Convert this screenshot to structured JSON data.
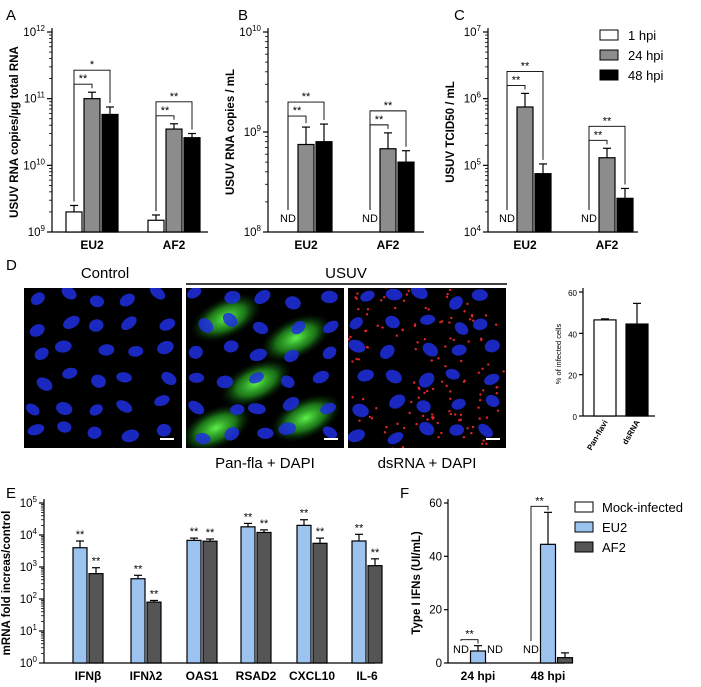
{
  "panels": {
    "A": "A",
    "B": "B",
    "C": "C",
    "D": "D",
    "E": "E",
    "F": "F"
  },
  "legend_abc": {
    "items": [
      "1 hpi",
      "24 hpi",
      "48 hpi"
    ],
    "colors": [
      "#ffffff",
      "#8c8c8c",
      "#000000"
    ]
  },
  "legend_f": {
    "items": [
      "Mock-infected",
      "EU2",
      "AF2"
    ],
    "colors": [
      "#ffffff",
      "#9cc3f0",
      "#555555"
    ]
  },
  "panel_d": {
    "control_label": "Control",
    "usuv_label": "USUV",
    "caption_pan": "Pan-fla + DAPI",
    "caption_dsrna": "dsRNA + DAPI",
    "nuclei_color": "#1f2fe0",
    "panflavi_color": "#3fd43a",
    "dsrna_color": "#e0262a"
  },
  "chart_data": [
    {
      "id": "A",
      "type": "bar",
      "yscale": "log",
      "ylabel": "USUV RNA copies/µg total RNA",
      "ylim_exp": [
        9,
        12
      ],
      "categories": [
        "EU2",
        "AF2"
      ],
      "series": [
        {
          "name": "1 hpi",
          "values": [
            2000000000.0,
            1500000000.0
          ],
          "errors": [
            2500000000.0,
            1800000000.0
          ]
        },
        {
          "name": "24 hpi",
          "values": [
            100000000000.0,
            35000000000.0
          ],
          "errors": [
            125000000000.0,
            42000000000.0
          ]
        },
        {
          "name": "48 hpi",
          "values": [
            58000000000.0,
            26000000000.0
          ],
          "errors": [
            75000000000.0,
            30000000000.0
          ]
        }
      ],
      "nd": [],
      "sig": [
        {
          "cat": 0,
          "from": 0,
          "to": 1,
          "label": "**"
        },
        {
          "cat": 0,
          "from": 0,
          "to": 2,
          "label": "*"
        },
        {
          "cat": 1,
          "from": 0,
          "to": 1,
          "label": "**"
        },
        {
          "cat": 1,
          "from": 0,
          "to": 2,
          "label": "**"
        }
      ]
    },
    {
      "id": "B",
      "type": "bar",
      "yscale": "log",
      "ylabel": "USUV RNA copies / mL",
      "ylim_exp": [
        8,
        10
      ],
      "categories": [
        "EU2",
        "AF2"
      ],
      "series": [
        {
          "name": "1 hpi",
          "values": [
            null,
            null
          ],
          "errors": [
            null,
            null
          ]
        },
        {
          "name": "24 hpi",
          "values": [
            750000000.0,
            680000000.0
          ],
          "errors": [
            1120000000.0,
            980000000.0
          ]
        },
        {
          "name": "48 hpi",
          "values": [
            800000000.0,
            500000000.0
          ],
          "errors": [
            1200000000.0,
            650000000.0
          ]
        }
      ],
      "nd": [
        "ND",
        "ND"
      ],
      "sig": [
        {
          "cat": 0,
          "from": 0,
          "to": 1,
          "label": "**"
        },
        {
          "cat": 0,
          "from": 0,
          "to": 2,
          "label": "**"
        },
        {
          "cat": 1,
          "from": 0,
          "to": 1,
          "label": "**"
        },
        {
          "cat": 1,
          "from": 0,
          "to": 2,
          "label": "**"
        }
      ]
    },
    {
      "id": "C",
      "type": "bar",
      "yscale": "log",
      "ylabel": "USUV TCID50 / mL",
      "ylim_exp": [
        4,
        7
      ],
      "categories": [
        "EU2",
        "AF2"
      ],
      "series": [
        {
          "name": "1 hpi",
          "values": [
            null,
            null
          ],
          "errors": [
            null,
            null
          ]
        },
        {
          "name": "24 hpi",
          "values": [
            750000.0,
            130000.0
          ],
          "errors": [
            1200000.0,
            180000.0
          ]
        },
        {
          "name": "48 hpi",
          "values": [
            75000.0,
            32000.0
          ],
          "errors": [
            105000.0,
            45000.0
          ]
        }
      ],
      "nd": [
        "ND",
        "ND"
      ],
      "sig": [
        {
          "cat": 0,
          "from": 0,
          "to": 1,
          "label": "**"
        },
        {
          "cat": 0,
          "from": 0,
          "to": 2,
          "label": "**"
        },
        {
          "cat": 1,
          "from": 0,
          "to": 1,
          "label": "**"
        },
        {
          "cat": 1,
          "from": 0,
          "to": 2,
          "label": "**"
        }
      ]
    },
    {
      "id": "D",
      "type": "bar",
      "ylabel": "% of infected cells",
      "ylim": [
        0,
        60
      ],
      "yticks": [
        0,
        20,
        40,
        60
      ],
      "categories": [
        "Pan-flavi",
        "dsRNA"
      ],
      "values": [
        46.5,
        44.5
      ],
      "errors": [
        47,
        54.5
      ],
      "colors": [
        "#ffffff",
        "#000000"
      ]
    },
    {
      "id": "E",
      "type": "bar",
      "yscale": "log",
      "ylabel": "mRNA fold increas/control",
      "ylim_exp": [
        0,
        5
      ],
      "categories": [
        "IFNβ",
        "IFNλ2",
        "OAS1",
        "RSAD2",
        "CXCL10",
        "IL-6"
      ],
      "series": [
        {
          "name": "EU2",
          "values": [
            4000,
            430,
            6800,
            18000,
            20000,
            6500
          ],
          "errors": [
            6500,
            550,
            8000,
            23000,
            30000,
            10500
          ]
        },
        {
          "name": "AF2",
          "values": [
            620,
            80,
            6400,
            12000,
            5500,
            1100
          ],
          "errors": [
            950,
            90,
            7500,
            14500,
            8000,
            1800
          ]
        }
      ],
      "sig_label": "**"
    },
    {
      "id": "F",
      "type": "bar",
      "ylabel": "Type I IFNs (UI/mL)",
      "ylim": [
        0,
        60
      ],
      "yticks": [
        0,
        20,
        40,
        60
      ],
      "categories": [
        "24 hpi",
        "48 hpi"
      ],
      "series": [
        {
          "name": "Mock-infected",
          "values": [
            null,
            null
          ]
        },
        {
          "name": "EU2",
          "values": [
            4.5,
            44.5
          ],
          "errors": [
            6.5,
            56.5
          ]
        },
        {
          "name": "AF2",
          "values": [
            null,
            2.0
          ],
          "errors": [
            null,
            3.8
          ]
        }
      ],
      "nd": [
        [
          "ND",
          "ND"
        ],
        [
          "ND",
          null
        ]
      ],
      "sig": [
        {
          "cat": 0,
          "label": "**"
        },
        {
          "cat": 1,
          "label": "**"
        }
      ]
    }
  ]
}
